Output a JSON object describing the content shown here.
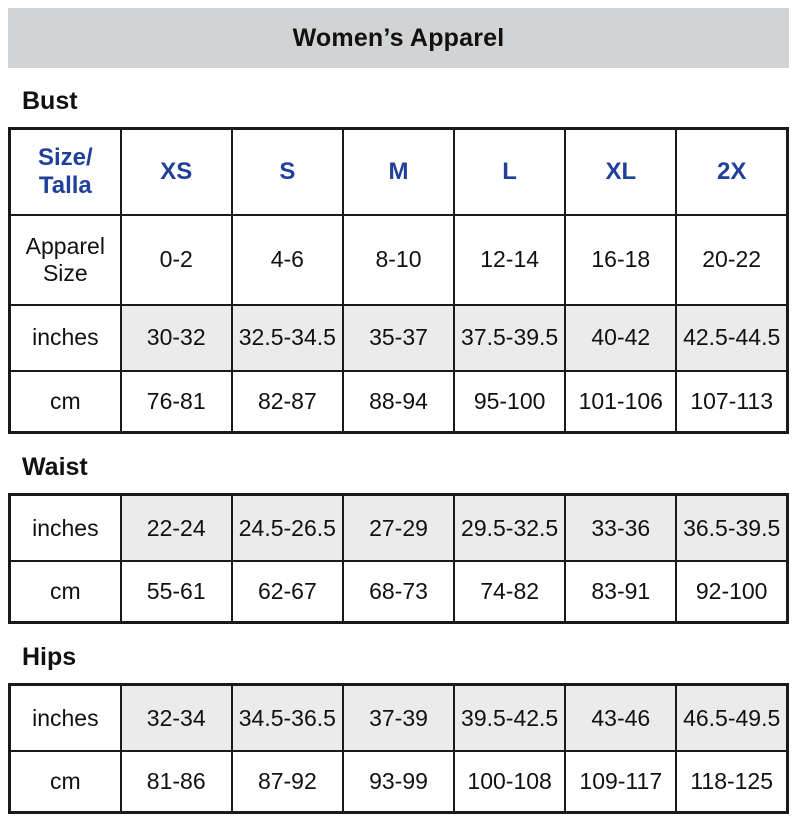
{
  "page": {
    "title": "Women’s Apparel"
  },
  "colors": {
    "header_bg": "#d1d3d4",
    "shaded_cell_bg": "#ebebeb",
    "size_header_blue": "#21409a",
    "border": "#1a1a1a"
  },
  "sections": [
    {
      "id": "bust",
      "heading": "Bust",
      "rows": [
        {
          "style": "header",
          "label_lines": [
            "Size/",
            "Talla"
          ],
          "cells": [
            "XS",
            "S",
            "M",
            "L",
            "XL",
            "2X"
          ]
        },
        {
          "style": "tall-plain",
          "label_lines": [
            "Apparel",
            "Size"
          ],
          "cells": [
            "0-2",
            "4-6",
            "8-10",
            "12-14",
            "16-18",
            "20-22"
          ]
        },
        {
          "style": "shaded",
          "label_lines": [
            "inches"
          ],
          "cells": [
            "30-32",
            "32.5-34.5",
            "35-37",
            "37.5-39.5",
            "40-42",
            "42.5-44.5"
          ]
        },
        {
          "style": "plain",
          "label_lines": [
            "cm"
          ],
          "cells": [
            "76-81",
            "82-87",
            "88-94",
            "95-100",
            "101-106",
            "107-113"
          ]
        }
      ]
    },
    {
      "id": "waist",
      "heading": "Waist",
      "rows": [
        {
          "style": "shaded",
          "label_lines": [
            "inches"
          ],
          "cells": [
            "22-24",
            "24.5-26.5",
            "27-29",
            "29.5-32.5",
            "33-36",
            "36.5-39.5"
          ]
        },
        {
          "style": "plain",
          "label_lines": [
            "cm"
          ],
          "cells": [
            "55-61",
            "62-67",
            "68-73",
            "74-82",
            "83-91",
            "92-100"
          ]
        }
      ]
    },
    {
      "id": "hips",
      "heading": "Hips",
      "rows": [
        {
          "style": "shaded",
          "label_lines": [
            "inches"
          ],
          "cells": [
            "32-34",
            "34.5-36.5",
            "37-39",
            "39.5-42.5",
            "43-46",
            "46.5-49.5"
          ]
        },
        {
          "style": "plain",
          "label_lines": [
            "cm"
          ],
          "cells": [
            "81-86",
            "87-92",
            "93-99",
            "100-108",
            "109-117",
            "118-125"
          ]
        }
      ]
    }
  ]
}
